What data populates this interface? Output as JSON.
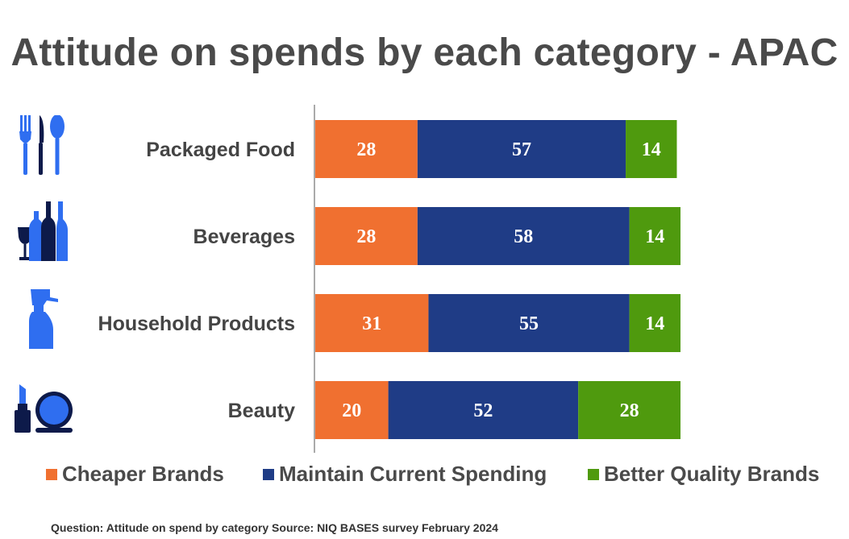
{
  "title": "Attitude on spends by each category - APAC",
  "footnote": "Question: Attitude on spend by category Source: NIQ BASES survey February 2024",
  "colors": {
    "cheaper": "#f07030",
    "maintain": "#1f3c86",
    "better": "#4f9a0e",
    "icon_blue": "#2f6ef0",
    "icon_navy": "#0d1a4a"
  },
  "icons": [
    "cutlery-icon",
    "bottles-glass-icon",
    "spray-bottle-icon",
    "lipstick-compact-icon"
  ],
  "legend": [
    {
      "label": "Cheaper Brands",
      "color": "#f07030"
    },
    {
      "label": "Maintain Current Spending",
      "color": "#1f3c86"
    },
    {
      "label": "Better Quality Brands",
      "color": "#4f9a0e"
    }
  ],
  "chart_data": {
    "type": "bar",
    "orientation": "horizontal",
    "stacked": true,
    "categories": [
      "Packaged Food",
      "Beverages",
      "Household Products",
      "Beauty"
    ],
    "series": [
      {
        "name": "Cheaper Brands",
        "values": [
          28,
          28,
          31,
          20
        ]
      },
      {
        "name": "Maintain Current Spending",
        "values": [
          57,
          58,
          55,
          52
        ]
      },
      {
        "name": "Better Quality Brands",
        "values": [
          14,
          14,
          14,
          28
        ]
      }
    ],
    "xlim": [
      0,
      100
    ],
    "legend_position": "bottom",
    "grid": false
  }
}
